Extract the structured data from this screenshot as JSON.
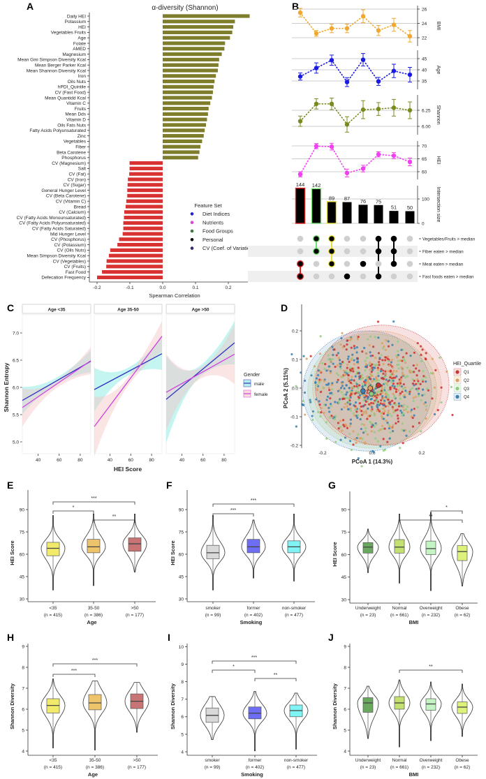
{
  "panel_a": {
    "letter": "A",
    "title": "α-diversity (Shannon)",
    "xlabel": "Spearman Correlation",
    "xticks": [
      "-0.2",
      "-0.1",
      "0.0",
      "0.1",
      "0.2"
    ],
    "legend_title": "Feature Set",
    "legend": [
      [
        "diet",
        "Diet Indices"
      ],
      [
        "nutrient",
        "Nutrients"
      ],
      [
        "food",
        "Food Groups"
      ],
      [
        "personal",
        "Personal"
      ],
      [
        "cv",
        "CV (Coef. of Variation)"
      ]
    ],
    "set_colors": {
      "diet": "#2222cc",
      "nutrient": "#dd44dd",
      "food": "#3a7a3a",
      "personal": "#111111",
      "cv": "#3a2a70"
    },
    "bar_colors": {
      "positive": "#7d7d2c",
      "negative": "#d83232"
    },
    "features": [
      [
        "Daily HEI",
        "diet",
        0.265
      ],
      [
        "Potassium",
        "nutrient",
        0.22
      ],
      [
        "HEI",
        "diet",
        0.215
      ],
      [
        "Vegetables Fruits",
        "food",
        0.212
      ],
      [
        "Age",
        "personal",
        0.205
      ],
      [
        "Folate",
        "nutrient",
        0.19
      ],
      [
        "AMED",
        "diet",
        0.188
      ],
      [
        "Magnesium",
        "nutrient",
        0.18
      ],
      [
        "Mean Gini Simpson Diversity Kcal",
        "diet",
        0.172
      ],
      [
        "Mean Berger Parker Kcal",
        "diet",
        0.17
      ],
      [
        "Mean Shannon Diversity Kcal",
        "diet",
        0.168
      ],
      [
        "Iron",
        "nutrient",
        0.162
      ],
      [
        "Oils Nuts",
        "food",
        0.158
      ],
      [
        "hPDI_Quintile",
        "nutrient",
        0.155
      ],
      [
        "CV (Fast Food)",
        "cv",
        0.153
      ],
      [
        "Mean Quantidd Kcal",
        "diet",
        0.15
      ],
      [
        "Vitamin C",
        "nutrient",
        0.145
      ],
      [
        "Fruits",
        "food",
        0.14
      ],
      [
        "Mean Dds",
        "diet",
        0.138
      ],
      [
        "Vitamin D",
        "nutrient",
        0.135
      ],
      [
        "Oils Fats Nuts",
        "food",
        0.132
      ],
      [
        "Fatty Acids Polyunsaturated",
        "nutrient",
        0.128
      ],
      [
        "Zinc",
        "nutrient",
        0.125
      ],
      [
        "Vegetables",
        "food",
        0.12
      ],
      [
        "Fiber",
        "nutrient",
        0.115
      ],
      [
        "Beta Carotene",
        "nutrient",
        0.112
      ],
      [
        "Phosphorus",
        "nutrient",
        0.108
      ],
      [
        "CV (Magnesium)",
        "cv",
        -0.101
      ],
      [
        "Salt",
        "nutrient",
        -0.101
      ],
      [
        "CV (Fat)",
        "cv",
        -0.102
      ],
      [
        "CV (Iron)",
        "cv",
        -0.106
      ],
      [
        "CV (Sugar)",
        "cv",
        -0.107
      ],
      [
        "General Hunger Level",
        "nutrient",
        -0.108
      ],
      [
        "CV (Beta Carotene)",
        "cv",
        -0.108
      ],
      [
        "CV (Vitamin C)",
        "cv",
        -0.111
      ],
      [
        "Bread",
        "food",
        -0.113
      ],
      [
        "CV (Calcium)",
        "cv",
        -0.117
      ],
      [
        "CV (Fatty Acids Monounsaturated)",
        "cv",
        -0.118
      ],
      [
        "CV (Fatty Acids Polyunsaturated)",
        "cv",
        -0.12
      ],
      [
        "CV (Fatty Acids Saturated)",
        "cv",
        -0.12
      ],
      [
        "Mid Hunger Level",
        "nutrient",
        -0.122
      ],
      [
        "CV (Phosphorus)",
        "cv",
        -0.133
      ],
      [
        "CV (Potassium)",
        "cv",
        -0.138
      ],
      [
        "CV (Oils Nuts)",
        "cv",
        -0.16
      ],
      [
        "Mean Simpson Diversity Kcal",
        "diet",
        -0.164
      ],
      [
        "CV (Vegetables)",
        "cv",
        -0.171
      ],
      [
        "CV (Fruits)",
        "cv",
        -0.172
      ],
      [
        "Fast Food",
        "food",
        -0.185
      ],
      [
        "Defecation Frequency",
        "nutrient",
        -0.2
      ]
    ]
  },
  "panel_b": {
    "letter": "B",
    "dot_panels": [
      {
        "label": "BMI",
        "color": "#f0a830",
        "ticks": [
          "22",
          "24",
          "26"
        ],
        "values": [
          25.5,
          22.6,
          23.3,
          23.3,
          25.0,
          23.0,
          23.8,
          22.2
        ],
        "err": [
          0.6,
          0.4,
          0.6,
          0.6,
          0.9,
          0.7,
          0.9,
          0.8
        ]
      },
      {
        "label": "Age",
        "color": "#1a1ae0",
        "ticks": [
          "35",
          "40",
          "45"
        ],
        "values": [
          37.0,
          40.8,
          44.3,
          34.5,
          44.5,
          34.8,
          39.5,
          37.8
        ],
        "err": [
          1.6,
          2.3,
          2.3,
          2.0,
          2.8,
          1.8,
          3.0,
          3.3
        ]
      },
      {
        "label": "Shannon",
        "color": "#7a8a20",
        "ticks": [
          "6.00",
          "6.25"
        ],
        "values": [
          6.08,
          6.35,
          6.35,
          6.03,
          6.26,
          6.27,
          6.29,
          6.25
        ],
        "err": [
          0.08,
          0.08,
          0.09,
          0.12,
          0.14,
          0.1,
          0.13,
          0.13
        ]
      },
      {
        "label": "HEI",
        "color": "#f040f0",
        "ticks": [
          "60",
          "65",
          "70"
        ],
        "values": [
          59.0,
          69.9,
          69.7,
          59.5,
          61.2,
          66.7,
          66.2,
          63.8
        ],
        "err": [
          1.0,
          1.0,
          1.3,
          1.5,
          1.3,
          1.0,
          1.2,
          1.5
        ]
      }
    ],
    "intersection": {
      "label": "Intersection size",
      "ticks": [
        "0",
        "100"
      ],
      "counts": [
        144,
        142,
        89,
        87,
        76,
        75,
        51,
        50
      ],
      "count_labels": [
        "144",
        "142",
        "89",
        "87",
        "76",
        "75",
        "51",
        "50"
      ],
      "highlight_colors": [
        "#e02020",
        "#70e070",
        "#e8e040",
        "",
        "",
        "",
        "",
        ""
      ]
    },
    "sets": [
      "Vegetables/Fruits > median",
      "Fiber eaten > median",
      "Meat eaten > median",
      "Fast foods eaten > median"
    ],
    "membership": [
      [
        0,
        0,
        1,
        1
      ],
      [
        1,
        1,
        0,
        0
      ],
      [
        1,
        1,
        1,
        0
      ],
      [
        0,
        0,
        0,
        1
      ],
      [
        0,
        0,
        1,
        0
      ],
      [
        1,
        1,
        0,
        1
      ],
      [
        1,
        1,
        1,
        0
      ],
      [
        0,
        0,
        0,
        0
      ]
    ]
  },
  "panel_c": {
    "letter": "C",
    "ylabel": "Shannon Entropy",
    "xlabel": "HEI Score",
    "yticks": [
      "5.0",
      "5.5",
      "6.0",
      "6.5",
      "7.0"
    ],
    "xticks": [
      "40",
      "60",
      "80"
    ],
    "x_range": [
      25,
      90
    ],
    "colors": {
      "male": "#3030c0",
      "female": "#d040e0",
      "male_ribbon": "#7fe8e0",
      "female_ribbon": "#f4c4c4"
    },
    "legend": {
      "title": "Gender",
      "male": "male",
      "female": "female"
    },
    "facets": [
      {
        "label": "Age <35",
        "male": {
          "y": [
            5.76,
            6.48
          ],
          "ci": [
            0.25,
            0.06,
            0.2
          ]
        },
        "female": {
          "y": [
            5.63,
            6.49
          ],
          "ci": [
            0.35,
            0.07,
            0.25
          ]
        }
      },
      {
        "label": "Age 35-50",
        "male": {
          "y": [
            5.96,
            6.62
          ],
          "ci": [
            0.4,
            0.07,
            0.3
          ]
        },
        "female": {
          "y": [
            5.28,
            6.94
          ],
          "ci": [
            0.55,
            0.08,
            0.28
          ]
        }
      },
      {
        "label": "Age >50",
        "male": {
          "y": [
            5.78,
            6.82
          ],
          "ci": [
            0.8,
            0.1,
            0.4
          ]
        },
        "female": {
          "y": [
            5.91,
            6.61
          ],
          "ci": [
            0.7,
            0.1,
            0.55
          ]
        }
      }
    ]
  },
  "panel_d": {
    "letter": "D",
    "xlabel": "PCoA 1 (14.3%)",
    "ylabel": "PCoA 2 (5.11%)",
    "xticks": [
      "-0.2",
      "0.0",
      "0.2"
    ],
    "yticks": [
      "-0.2",
      "-0.1",
      "0.0",
      "0.1",
      "0.2"
    ],
    "legend_title": "HEI_Quartile",
    "groups": [
      {
        "name": "Q1",
        "color": "#cc3333",
        "centroid": [
          0.025,
          0.01
        ],
        "ellipse": {
          "center": [
            0.04,
            0.01
          ],
          "radii": [
            0.27,
            0.21
          ]
        }
      },
      {
        "name": "Q2",
        "color": "#d9a060",
        "centroid": [
          -0.008,
          0.0
        ],
        "ellipse": {
          "center": [
            0.02,
            0.0
          ],
          "radii": [
            0.26,
            0.2
          ]
        }
      },
      {
        "name": "Q3",
        "color": "#90cc80",
        "centroid": [
          -0.003,
          -0.02
        ],
        "ellipse": {
          "center": [
            0.0,
            -0.01
          ],
          "radii": [
            0.26,
            0.2
          ]
        }
      },
      {
        "name": "Q4",
        "color": "#3a80b0",
        "centroid": [
          -0.037,
          -0.01
        ],
        "ellipse": {
          "center": [
            -0.02,
            -0.01
          ],
          "radii": [
            0.26,
            0.21
          ]
        }
      }
    ]
  },
  "violin_panels": [
    {
      "letter": "E",
      "ylabel": "HEI Score",
      "xlabel": "Age",
      "yticks": [
        "30",
        "45",
        "60",
        "75",
        "90"
      ],
      "groups": [
        {
          "name": "<35",
          "n": "(n = 415)",
          "color": "#f2ea6a",
          "min": 36,
          "q1": 59,
          "median": 64,
          "q3": 68,
          "max": 86
        },
        {
          "name": "35-50",
          "n": "(n = 386)",
          "color": "#eec46a",
          "min": 39,
          "q1": 61,
          "median": 65,
          "q3": 70,
          "max": 87
        },
        {
          "name": ">50",
          "n": "(n = 177)",
          "color": "#c87474",
          "min": 48,
          "q1": 62,
          "median": 67,
          "q3": 71,
          "max": 87
        }
      ],
      "brackets": [
        [
          0,
          2,
          "***"
        ],
        [
          0,
          1,
          "*"
        ],
        [
          1,
          2,
          "**"
        ]
      ]
    },
    {
      "letter": "F",
      "ylabel": "HEI Score",
      "xlabel": "Smoking",
      "yticks": [
        "30",
        "45",
        "60",
        "75",
        "90"
      ],
      "groups": [
        {
          "name": "smoker",
          "n": "(n = 99)",
          "color": "#d9d9d9",
          "min": 36,
          "q1": 57,
          "median": 61,
          "q3": 66,
          "max": 86
        },
        {
          "name": "former",
          "n": "(n = 402)",
          "color": "#6e6ef5",
          "min": 44,
          "q1": 61,
          "median": 65,
          "q3": 70,
          "max": 83
        },
        {
          "name": "non-smoker",
          "n": "(n = 477)",
          "color": "#80f4f4",
          "min": 42,
          "q1": 61,
          "median": 65,
          "q3": 69,
          "max": 87
        }
      ],
      "brackets": [
        [
          0,
          2,
          "***"
        ],
        [
          0,
          1,
          "***"
        ]
      ]
    },
    {
      "letter": "G",
      "ylabel": "HEI Score",
      "xlabel": "BMI",
      "yticks": [
        "30",
        "45",
        "60",
        "75",
        "90"
      ],
      "groups": [
        {
          "name": "Underweight",
          "n": "(n = 23)",
          "color": "#6aa860",
          "min": 48,
          "q1": 61,
          "median": 65,
          "q3": 68,
          "max": 77
        },
        {
          "name": "Normal",
          "n": "(n = 661)",
          "color": "#c4e070",
          "min": 41,
          "q1": 61,
          "median": 65,
          "q3": 70,
          "max": 87
        },
        {
          "name": "Overweight",
          "n": "(n = 232)",
          "color": "#c4f4c4",
          "min": 36,
          "q1": 60,
          "median": 64,
          "q3": 69,
          "max": 88
        },
        {
          "name": "Obese",
          "n": "(n = 62)",
          "color": "#dcf27a",
          "min": 39,
          "q1": 56,
          "median": 62,
          "q3": 66,
          "max": 74
        }
      ],
      "brackets": [
        [
          2,
          3,
          "*"
        ],
        [
          1,
          3,
          "**"
        ]
      ]
    },
    {
      "letter": "H",
      "ylabel": "Shannon Diversity",
      "xlabel": "Age",
      "yticks": [
        "4",
        "5",
        "6",
        "7",
        "8",
        "9"
      ],
      "groups": [
        {
          "name": "<35",
          "n": "(n = 415)",
          "color": "#f2ea6a",
          "min": 4.15,
          "q1": 5.82,
          "median": 6.18,
          "q3": 6.5,
          "max": 7.45
        },
        {
          "name": "35-50",
          "n": "(n = 386)",
          "color": "#eec46a",
          "min": 4.05,
          "q1": 5.97,
          "median": 6.3,
          "q3": 6.7,
          "max": 7.35
        },
        {
          "name": ">50",
          "n": "(n = 177)",
          "color": "#c87474",
          "min": 4.9,
          "q1": 6.03,
          "median": 6.38,
          "q3": 6.73,
          "max": 7.28
        }
      ],
      "brackets": [
        [
          0,
          2,
          "***"
        ],
        [
          0,
          1,
          "***"
        ]
      ]
    },
    {
      "letter": "I",
      "ylabel": "Shannon Diversity",
      "xlabel": "Smoking",
      "yticks": [
        "4",
        "5",
        "6",
        "7",
        "8",
        "9",
        "10"
      ],
      "groups": [
        {
          "name": "smoker",
          "n": "(n = 99)",
          "color": "#d9d9d9",
          "min": 4.7,
          "q1": 5.68,
          "median": 6.08,
          "q3": 6.5,
          "max": 7.15
        },
        {
          "name": "former",
          "n": "(n = 402)",
          "color": "#6e6ef5",
          "min": 4.05,
          "q1": 5.88,
          "median": 6.2,
          "q3": 6.56,
          "max": 7.45
        },
        {
          "name": "non-smoker",
          "n": "(n = 477)",
          "color": "#80f4f4",
          "min": 4.15,
          "q1": 6.0,
          "median": 6.35,
          "q3": 6.67,
          "max": 7.35
        }
      ],
      "brackets": [
        [
          0,
          2,
          "***"
        ],
        [
          0,
          1,
          "*"
        ],
        [
          1,
          2,
          "**"
        ]
      ]
    },
    {
      "letter": "J",
      "ylabel": "Shannon Diversity",
      "xlabel": "BMI",
      "yticks": [
        "4",
        "5",
        "6",
        "7",
        "8",
        "9"
      ],
      "groups": [
        {
          "name": "Underweight",
          "n": "(n = 23)",
          "color": "#6aa860",
          "min": 4.6,
          "q1": 5.85,
          "median": 6.3,
          "q3": 6.55,
          "max": 7.1
        },
        {
          "name": "Normal",
          "n": "(n = 661)",
          "color": "#c4e070",
          "min": 4.2,
          "q1": 6.0,
          "median": 6.3,
          "q3": 6.6,
          "max": 7.4
        },
        {
          "name": "Overweight",
          "n": "(n = 232)",
          "color": "#c4f4c4",
          "min": 4.5,
          "q1": 5.95,
          "median": 6.25,
          "q3": 6.5,
          "max": 7.3
        },
        {
          "name": "Obese",
          "n": "(n = 62)",
          "color": "#dcf27a",
          "min": 4.7,
          "q1": 5.8,
          "median": 6.1,
          "q3": 6.35,
          "max": 7.2
        }
      ],
      "brackets": [
        [
          1,
          3,
          "**"
        ]
      ]
    }
  ]
}
